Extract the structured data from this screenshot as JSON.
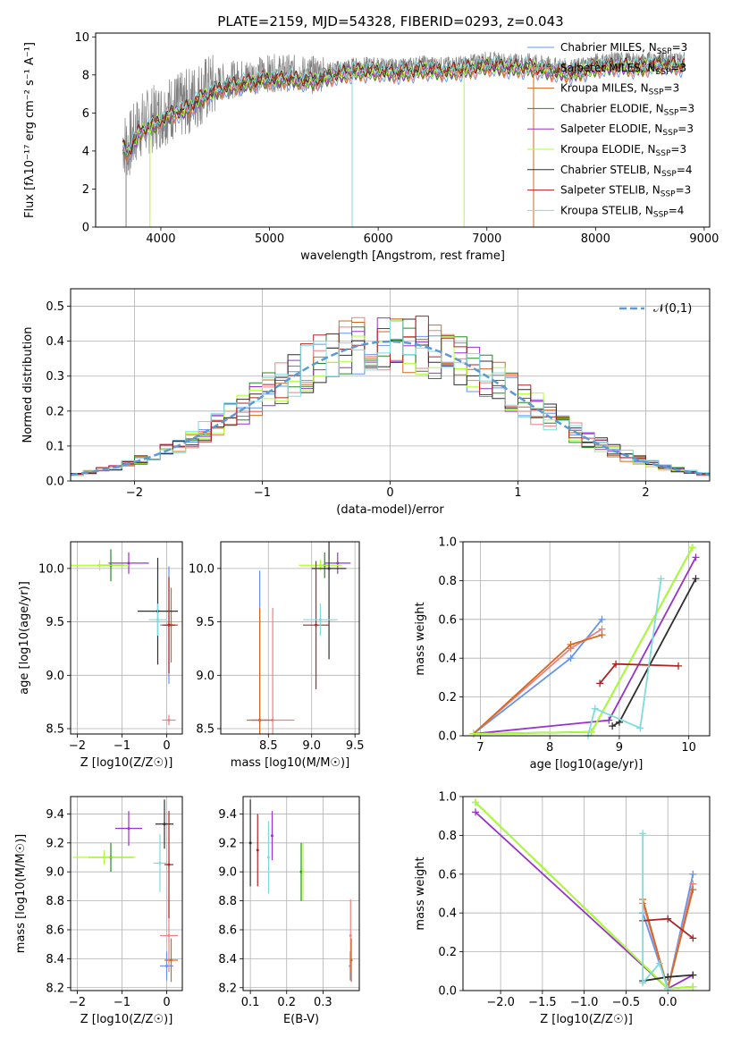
{
  "figure_title": "PLATE=2159, MJD=54328, FIBERID=0293, z=0.043",
  "series_styles": [
    {
      "name": "Chabrier MILES",
      "nssp": "3",
      "color": "#6495ed"
    },
    {
      "name": "Salpeter MILES",
      "nssp": "3",
      "color": "#f08080"
    },
    {
      "name": "Kroupa MILES",
      "nssp": "3",
      "color": "#d2691e"
    },
    {
      "name": "Chabrier ELODIE",
      "nssp": "3",
      "color": "#228b22"
    },
    {
      "name": "Salpeter ELODIE",
      "nssp": "3",
      "color": "#9932cc"
    },
    {
      "name": "Kroupa ELODIE",
      "nssp": "3",
      "color": "#adff2f"
    },
    {
      "name": "Chabrier STELIB",
      "nssp": "4",
      "color": "#2f2f2f"
    },
    {
      "name": "Salpeter STELIB",
      "nssp": "3",
      "color": "#b22222"
    },
    {
      "name": "Kroupa STELIB",
      "nssp": "4",
      "color": "#7fdbdb"
    }
  ],
  "chart_data": [
    {
      "id": "spectrum",
      "type": "line",
      "title": "PLATE=2159, MJD=54328, FIBERID=0293, z=0.043",
      "xlabel": "wavelength [Angstrom, rest frame]",
      "ylabel": "Flux [fλ10⁻¹⁷ erg cm⁻² s⁻¹ A⁻¹]",
      "xlim": [
        3400,
        9050
      ],
      "ylim": [
        0,
        10.2
      ],
      "xticks": [
        4000,
        5000,
        6000,
        7000,
        8000,
        9000
      ],
      "yticks": [
        0,
        2,
        4,
        6,
        8,
        10
      ],
      "data_envelope": {
        "x": [
          3650,
          3700,
          3800,
          3900,
          4000,
          4100,
          4200,
          4400,
          4600,
          4800,
          5000,
          5200,
          5400,
          5600,
          5800,
          6000,
          6200,
          6400,
          6600,
          6800,
          7000,
          7200,
          7400,
          7600,
          7800,
          8000,
          8200,
          8400,
          8600,
          8800
        ],
        "y": [
          4.5,
          4.2,
          5.3,
          5.6,
          5.9,
          6.3,
          6.4,
          7.2,
          7.7,
          7.9,
          8.1,
          8.1,
          8.0,
          8.3,
          8.5,
          8.5,
          8.4,
          8.6,
          8.5,
          8.6,
          8.8,
          8.7,
          8.7,
          8.5,
          8.4,
          8.7,
          8.8,
          8.7,
          8.9,
          8.8
        ]
      },
      "legend_position": "top-right",
      "grid": false
    },
    {
      "id": "residuals",
      "type": "histogram",
      "xlabel": "(data-model)/error",
      "ylabel": "Normed distribution",
      "xlim": [
        -2.5,
        2.5
      ],
      "ylim": [
        0,
        0.55
      ],
      "xticks": [
        -2,
        -1,
        0,
        1,
        2
      ],
      "yticks": [
        0.0,
        0.1,
        0.2,
        0.3,
        0.4,
        0.5
      ],
      "reference_curve": "𝒩(0,1)",
      "grid": true
    },
    {
      "id": "age_vs_Z",
      "type": "errorbar",
      "xlabel": "Z [log10(Z/Z☉)]",
      "ylabel": "age  [log10(age/yr)]",
      "xlim": [
        -2.15,
        0.35
      ],
      "ylim": [
        8.45,
        10.25
      ],
      "xticks": [
        -2,
        -1,
        0
      ],
      "yticks": [
        8.5,
        9.0,
        9.5,
        10.0
      ],
      "points": [
        {
          "series": 0,
          "x": 0.05,
          "y": 9.47,
          "xerr": 0.2,
          "yerr": 0.55
        },
        {
          "series": 1,
          "x": 0.05,
          "y": 8.58,
          "xerr": 0.15,
          "yerr": 0.05
        },
        {
          "series": 2,
          "x": 0.1,
          "y": 9.47,
          "xerr": 0.15,
          "yerr": 0.35
        },
        {
          "series": 3,
          "x": -1.25,
          "y": 10.03,
          "xerr": 0.3,
          "yerr": 0.15
        },
        {
          "series": 4,
          "x": -0.85,
          "y": 10.05,
          "xerr": 0.45,
          "yerr": 0.1
        },
        {
          "series": 5,
          "x": -1.5,
          "y": 10.03,
          "xerr": 0.65,
          "yerr": 0.05
        },
        {
          "series": 6,
          "x": -0.2,
          "y": 9.6,
          "xerr": 0.45,
          "yerr": 0.5
        },
        {
          "series": 7,
          "x": 0.05,
          "y": 9.47,
          "xerr": 0.15,
          "yerr": 0.45
        },
        {
          "series": 8,
          "x": -0.2,
          "y": 9.52,
          "xerr": 0.2,
          "yerr": 0.15
        }
      ],
      "grid": true
    },
    {
      "id": "age_vs_mass",
      "type": "errorbar",
      "xlabel": "mass [log10(M/M☉)]",
      "ylabel": "",
      "xlim": [
        7.95,
        9.55
      ],
      "ylim": [
        8.45,
        10.25
      ],
      "xticks": [
        8.5,
        9.0,
        9.5
      ],
      "yticks": [
        8.5,
        9.0,
        9.5,
        10.0
      ],
      "points": [
        {
          "series": 0,
          "x": 8.4,
          "y": 8.58,
          "xerr": 0.1,
          "yerr": 1.4
        },
        {
          "series": 1,
          "x": 8.55,
          "y": 8.58,
          "xerr": 0.25,
          "yerr": 1.05
        },
        {
          "series": 2,
          "x": 8.4,
          "y": 8.58,
          "xerr": 0.15,
          "yerr": 1.05
        },
        {
          "series": 3,
          "x": 9.15,
          "y": 10.03,
          "xerr": 0.05,
          "yerr": 0.12
        },
        {
          "series": 4,
          "x": 9.3,
          "y": 10.05,
          "xerr": 0.15,
          "yerr": 0.1
        },
        {
          "series": 5,
          "x": 9.1,
          "y": 10.03,
          "xerr": 0.25,
          "yerr": 0.05
        },
        {
          "series": 6,
          "x": 9.2,
          "y": 10.0,
          "xerr": 0.2,
          "yerr": 0.85
        },
        {
          "series": 7,
          "x": 9.05,
          "y": 9.47,
          "xerr": 0.15,
          "yerr": 0.6
        },
        {
          "series": 8,
          "x": 9.1,
          "y": 9.52,
          "xerr": 0.2,
          "yerr": 0.15
        }
      ],
      "grid": true
    },
    {
      "id": "weight_vs_age",
      "type": "line",
      "xlabel": "age  [log10(age/yr)]",
      "ylabel": "mass weight",
      "xlim": [
        6.75,
        10.3
      ],
      "ylim": [
        0,
        1
      ],
      "xticks": [
        7,
        8,
        9,
        10
      ],
      "yticks": [
        0.0,
        0.2,
        0.4,
        0.6,
        0.8,
        1.0
      ],
      "series": [
        {
          "series": 0,
          "x": [
            6.9,
            8.3,
            8.75
          ],
          "y": [
            0.01,
            0.4,
            0.6
          ]
        },
        {
          "series": 1,
          "x": [
            6.9,
            8.3,
            8.75
          ],
          "y": [
            0.01,
            0.45,
            0.55
          ]
        },
        {
          "series": 2,
          "x": [
            6.9,
            8.3,
            8.75
          ],
          "y": [
            0.01,
            0.47,
            0.52
          ]
        },
        {
          "series": 3,
          "x": [
            6.9,
            8.6,
            10.05
          ],
          "y": [
            0.01,
            0.02,
            0.97
          ]
        },
        {
          "series": 4,
          "x": [
            6.9,
            8.85,
            10.1
          ],
          "y": [
            0.01,
            0.08,
            0.92
          ]
        },
        {
          "series": 5,
          "x": [
            6.9,
            8.6,
            10.05
          ],
          "y": [
            0.01,
            0.02,
            0.97
          ]
        },
        {
          "series": 6,
          "x": [
            8.9,
            9.0,
            10.1
          ],
          "y": [
            0.05,
            0.07,
            0.81
          ]
        },
        {
          "series": 7,
          "x": [
            8.72,
            8.95,
            9.85
          ],
          "y": [
            0.27,
            0.37,
            0.36
          ]
        },
        {
          "series": 8,
          "x": [
            8.55,
            8.65,
            9.3,
            9.6
          ],
          "y": [
            0.0,
            0.14,
            0.04,
            0.81
          ]
        }
      ],
      "grid": true
    },
    {
      "id": "mass_vs_Z",
      "type": "errorbar",
      "xlabel": "Z [log10(Z/Z☉)]",
      "ylabel": "mass [log10(M/M☉)]",
      "xlim": [
        -2.15,
        0.35
      ],
      "ylim": [
        8.18,
        9.52
      ],
      "xticks": [
        -2,
        -1,
        0
      ],
      "yticks": [
        8.2,
        8.4,
        8.6,
        8.8,
        9.0,
        9.2,
        9.4
      ],
      "points": [
        {
          "series": 0,
          "x": 0.0,
          "y": 8.35,
          "xerr": 0.15,
          "yerr": 0.1
        },
        {
          "series": 1,
          "x": 0.05,
          "y": 8.56,
          "xerr": 0.2,
          "yerr": 0.25
        },
        {
          "series": 2,
          "x": 0.1,
          "y": 8.39,
          "xerr": 0.15,
          "yerr": 0.15
        },
        {
          "series": 3,
          "x": -1.25,
          "y": 9.1,
          "xerr": 0.5,
          "yerr": 0.1
        },
        {
          "series": 4,
          "x": -0.85,
          "y": 9.3,
          "xerr": 0.3,
          "yerr": 0.12
        },
        {
          "series": 5,
          "x": -1.4,
          "y": 9.1,
          "xerr": 0.7,
          "yerr": 0.05
        },
        {
          "series": 6,
          "x": -0.05,
          "y": 9.33,
          "xerr": 0.2,
          "yerr": 0.17
        },
        {
          "series": 7,
          "x": 0.05,
          "y": 9.05,
          "xerr": 0.1,
          "yerr": 0.37
        },
        {
          "series": 8,
          "x": -0.15,
          "y": 9.06,
          "xerr": 0.15,
          "yerr": 0.2
        }
      ],
      "grid": true
    },
    {
      "id": "mass_vs_ebv",
      "type": "errorbar",
      "xlabel": "E(B-V)",
      "ylabel": "",
      "xlim": [
        0.08,
        0.4
      ],
      "ylim": [
        8.18,
        9.52
      ],
      "xticks": [
        0.1,
        0.2,
        0.3
      ],
      "yticks": [
        8.2,
        8.4,
        8.6,
        8.8,
        9.0,
        9.2,
        9.4
      ],
      "points": [
        {
          "series": 0,
          "x": 0.375,
          "y": 8.35,
          "xerr": 0,
          "yerr": 0.1
        },
        {
          "series": 1,
          "x": 0.376,
          "y": 8.56,
          "xerr": 0,
          "yerr": 0.25
        },
        {
          "series": 2,
          "x": 0.378,
          "y": 8.39,
          "xerr": 0,
          "yerr": 0.15
        },
        {
          "series": 3,
          "x": 0.24,
          "y": 9.0,
          "xerr": 0,
          "yerr": 0.2
        },
        {
          "series": 4,
          "x": 0.16,
          "y": 9.25,
          "xerr": 0,
          "yerr": 0.17
        },
        {
          "series": 5,
          "x": 0.245,
          "y": 9.0,
          "xerr": 0,
          "yerr": 0.2
        },
        {
          "series": 6,
          "x": 0.1,
          "y": 9.2,
          "xerr": 0,
          "yerr": 0.3
        },
        {
          "series": 7,
          "x": 0.12,
          "y": 9.15,
          "xerr": 0,
          "yerr": 0.25
        },
        {
          "series": 8,
          "x": 0.15,
          "y": 9.1,
          "xerr": 0,
          "yerr": 0.25
        }
      ],
      "grid": true
    },
    {
      "id": "weight_vs_Z",
      "type": "line",
      "xlabel": "Z [log10(Z/Z☉)]",
      "ylabel": "mass weight",
      "xlim": [
        -2.45,
        0.5
      ],
      "ylim": [
        0,
        1
      ],
      "xticks": [
        -2.0,
        -1.5,
        -1.0,
        -0.5,
        0.0
      ],
      "yticks": [
        0.0,
        0.2,
        0.4,
        0.6,
        0.8,
        1.0
      ],
      "series": [
        {
          "series": 0,
          "x": [
            -0.3,
            0.0,
            0.3
          ],
          "y": [
            0.4,
            0.01,
            0.6
          ]
        },
        {
          "series": 1,
          "x": [
            -0.3,
            0.0,
            0.3
          ],
          "y": [
            0.45,
            0.01,
            0.55
          ]
        },
        {
          "series": 2,
          "x": [
            -0.3,
            0.0,
            0.3
          ],
          "y": [
            0.47,
            0.01,
            0.52
          ]
        },
        {
          "series": 3,
          "x": [
            -2.3,
            0.0,
            0.3
          ],
          "y": [
            0.97,
            0.01,
            0.02
          ]
        },
        {
          "series": 4,
          "x": [
            -2.3,
            0.0,
            0.3
          ],
          "y": [
            0.92,
            0.01,
            0.08
          ]
        },
        {
          "series": 5,
          "x": [
            -2.3,
            0.0,
            0.3
          ],
          "y": [
            0.97,
            0.01,
            0.02
          ]
        },
        {
          "series": 6,
          "x": [
            -0.3,
            0.0,
            0.3
          ],
          "y": [
            0.05,
            0.07,
            0.08
          ]
        },
        {
          "series": 7,
          "x": [
            -0.3,
            0.0,
            0.3
          ],
          "y": [
            0.36,
            0.37,
            0.27
          ]
        },
        {
          "series": 8,
          "x": [
            -0.3,
            -0.3,
            -0.1,
            0.0
          ],
          "y": [
            0.81,
            0.04,
            0.14,
            0.01
          ]
        }
      ],
      "grid": true
    }
  ]
}
